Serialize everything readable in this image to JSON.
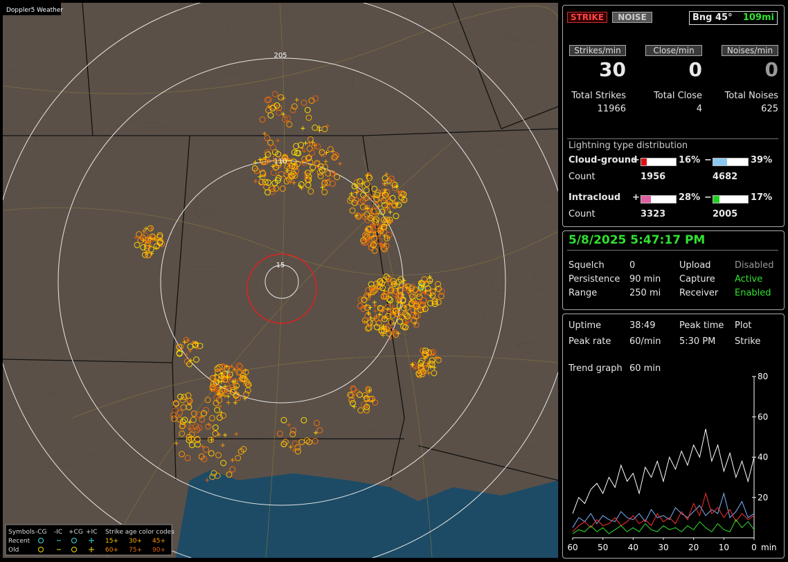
{
  "map": {
    "title": "Doppler5 Weather",
    "range_labels": [
      "205",
      "110",
      "15"
    ],
    "legend": {
      "headers": [
        "Symbols",
        "-CG",
        "-IC",
        "+CG",
        "+IC",
        "Strike age color codes"
      ],
      "rows": [
        "Recent",
        "Old"
      ],
      "age_codes": [
        [
          "15+",
          "30+",
          "45+"
        ],
        [
          "60+",
          "75+",
          "90+"
        ]
      ]
    }
  },
  "status": {
    "buttons": [
      "STRIKE",
      "NOISE"
    ],
    "bearing": "Bng 45°",
    "distance": "109mi"
  },
  "rates": [
    {
      "label": "Strikes/min",
      "value": 30,
      "total_label": "Total Strikes",
      "total": 11966
    },
    {
      "label": "Close/min",
      "value": 0,
      "total_label": "Total Close",
      "total": 4
    },
    {
      "label": "Noises/min",
      "value": 0,
      "total_label": "Total Noises",
      "total": 625
    }
  ],
  "distribution": {
    "title": "Lightning type distribution",
    "signs": [
      "+",
      "−"
    ],
    "rows": [
      {
        "label": "Cloud-ground",
        "plus": {
          "value": 16,
          "label": "16%",
          "color": "#e01010"
        },
        "minus": {
          "value": 39,
          "label": "39%",
          "color": "#8cc8f0"
        },
        "count_label": "Count",
        "plus_count": 1956,
        "minus_count": 4682
      },
      {
        "label": "Intracloud",
        "plus": {
          "value": 28,
          "label": "28%",
          "color": "#e060a0"
        },
        "minus": {
          "value": 17,
          "label": "17%",
          "color": "#20d020"
        },
        "count_label": "Count",
        "plus_count": 3323,
        "minus_count": 2005
      }
    ]
  },
  "datetime": "5/8/2025 5:47:17 PM",
  "settings": [
    [
      "Squelch",
      "0",
      "Upload",
      "Disabled"
    ],
    [
      "Persistence",
      "90 min",
      "Capture",
      "Active"
    ],
    [
      "Range",
      "250 mi",
      "Receiver",
      "Enabled"
    ]
  ],
  "stats": [
    [
      "Uptime",
      "38:49",
      "Peak time",
      "Plot"
    ],
    [
      "Peak rate",
      "60/min",
      "5:30 PM",
      "Strike"
    ],
    [
      "Trend graph",
      "60 min"
    ]
  ],
  "trend": {
    "type": "line",
    "x": [
      60,
      58,
      56,
      54,
      52,
      50,
      48,
      46,
      44,
      42,
      40,
      38,
      36,
      34,
      32,
      30,
      28,
      26,
      24,
      22,
      20,
      18,
      16,
      14,
      12,
      10,
      8,
      6,
      4,
      2,
      0
    ],
    "xlim": [
      60,
      0
    ],
    "xticks": [
      60,
      50,
      40,
      30,
      20,
      10,
      0
    ],
    "xlabel": "min",
    "ylim": [
      0,
      80
    ],
    "yticks": [
      20,
      40,
      60,
      80
    ],
    "series": [
      {
        "color": "#ffffff",
        "values": [
          12,
          20,
          17,
          24,
          27,
          22,
          30,
          25,
          36,
          28,
          32,
          22,
          35,
          30,
          38,
          28,
          40,
          34,
          43,
          36,
          46,
          40,
          54,
          38,
          46,
          33,
          42,
          30,
          38,
          28,
          40
        ]
      },
      {
        "color": "#7ab4ff",
        "values": [
          5,
          10,
          8,
          12,
          7,
          11,
          9,
          8,
          13,
          10,
          9,
          12,
          8,
          14,
          10,
          11,
          9,
          15,
          12,
          10,
          13,
          16,
          11,
          14,
          12,
          22,
          10,
          13,
          18,
          10,
          12
        ]
      },
      {
        "color": "#ff3030",
        "values": [
          3,
          6,
          8,
          5,
          9,
          6,
          7,
          10,
          6,
          8,
          11,
          7,
          9,
          6,
          12,
          8,
          10,
          7,
          13,
          9,
          17,
          11,
          22,
          12,
          15,
          10,
          14,
          8,
          12,
          9,
          11
        ]
      },
      {
        "color": "#30e030",
        "values": [
          2,
          4,
          3,
          6,
          3,
          5,
          2,
          4,
          6,
          3,
          5,
          3,
          7,
          4,
          3,
          6,
          4,
          5,
          3,
          6,
          4,
          8,
          5,
          3,
          7,
          4,
          3,
          9,
          5,
          8,
          4
        ]
      }
    ]
  }
}
